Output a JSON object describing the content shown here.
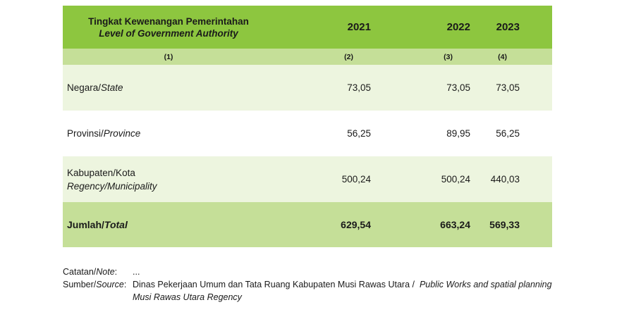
{
  "table": {
    "header": {
      "label_id": "Tingkat Kewenangan Pemerintahan",
      "label_en": "Level of Government Authority",
      "years": [
        "2021",
        "2022",
        "2023"
      ]
    },
    "col_numbers": [
      "(1)",
      "(2)",
      "(3)",
      "(4)"
    ],
    "rows": [
      {
        "label_id": "Negara/",
        "label_en": "State",
        "values": [
          "73,05",
          "73,05",
          "73,05"
        ]
      },
      {
        "label_id": "Provinsi/",
        "label_en": "Province",
        "values": [
          "56,25",
          "89,95",
          "56,25"
        ]
      },
      {
        "label_id": "Kabupaten/Kota",
        "label_en": "Regency/Municipality",
        "values": [
          "500,24",
          "500,24",
          "440,03"
        ]
      }
    ],
    "total": {
      "label_id": "Jumlah/",
      "label_en": "Total",
      "values": [
        "629,54",
        "663,24",
        "569,33"
      ]
    }
  },
  "notes": {
    "note_key_id": "Catatan/",
    "note_key_en": "Note",
    "note_colon": ":",
    "note_value": "...",
    "source_key_id": "Sumber/",
    "source_key_en": "Source",
    "source_colon": ":",
    "source_value_id": "Dinas Pekerjaan Umum dan Tata Ruang Kabupaten Musi Rawas Utara /",
    "source_value_en": "Public Works and spatial planning Musi Rawas Utara Regency"
  }
}
